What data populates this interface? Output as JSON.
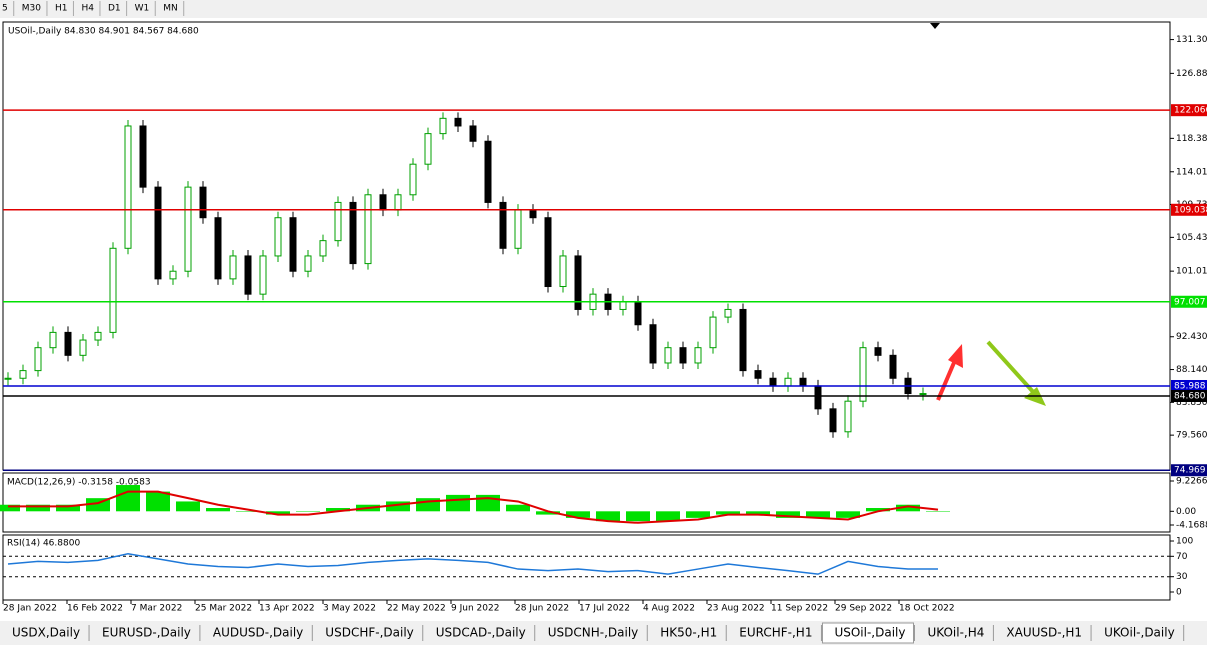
{
  "toolbar": {
    "timeframes": [
      "5",
      "M30",
      "H1",
      "H4",
      "D1",
      "W1",
      "MN"
    ]
  },
  "chart_data": {
    "type": "candlestick",
    "title": "USOil-,Daily  84.830 84.901 84.567 84.680",
    "up_color": "#00a000",
    "down_color": "#000000",
    "closes": [
      87,
      88,
      91,
      93,
      90,
      92,
      93,
      104,
      120,
      112,
      100,
      101,
      112,
      108,
      100,
      103,
      98,
      103,
      108,
      101,
      103,
      105,
      110,
      102,
      111,
      109,
      111,
      115,
      119,
      121,
      120,
      118,
      110,
      104,
      109,
      108,
      99,
      103,
      96,
      98,
      96,
      97,
      94,
      89,
      91,
      89,
      91,
      95,
      96,
      88,
      87,
      86,
      87,
      86,
      83,
      80,
      84,
      91,
      90,
      87,
      85,
      85
    ],
    "ylim": [
      75.0,
      133.6
    ],
    "yticks": [
      {
        "value": 131.3,
        "label": "131.300"
      },
      {
        "value": 126.88,
        "label": "126.880"
      },
      {
        "value": 118.38,
        "label": "118.380"
      },
      {
        "value": 114.01,
        "label": "114.010"
      },
      {
        "value": 109.73,
        "label": "109.730"
      },
      {
        "value": 105.43,
        "label": "105.430"
      },
      {
        "value": 101.01,
        "label": "101.010"
      },
      {
        "value": 92.43,
        "label": "92.430"
      },
      {
        "value": 88.14,
        "label": "88.140"
      },
      {
        "value": 83.85,
        "label": "83.850"
      },
      {
        "value": 79.56,
        "label": "79.560"
      }
    ],
    "levels": [
      {
        "value": 122.066,
        "label": "122.066",
        "color": "#e00000"
      },
      {
        "value": 109.038,
        "label": "109.038",
        "color": "#e00000"
      },
      {
        "value": 97.007,
        "label": "97.007",
        "color": "#00e000"
      },
      {
        "value": 85.988,
        "label": "85.988",
        "color": "#0000d0"
      },
      {
        "value": 84.68,
        "label": "84.680",
        "color": "#000000"
      },
      {
        "value": 74.969,
        "label": "74.969",
        "color": "#000080"
      }
    ],
    "x_labels": [
      "28 Jan 2022",
      "16 Feb 2022",
      "7 Mar 2022",
      "25 Mar 2022",
      "13 Apr 2022",
      "3 May 2022",
      "22 May 2022",
      "9 Jun 2022",
      "28 Jun 2022",
      "17 Jul 2022",
      "4 Aug 2022",
      "23 Aug 2022",
      "11 Sep 2022",
      "29 Sep 2022",
      "18 Oct 2022"
    ]
  },
  "macd": {
    "title": "MACD(12,26,9) -0.3158 -0.0583",
    "hist_color": "#00e000",
    "signal_color": "#e00000",
    "values": [
      2,
      2,
      2,
      4,
      8,
      6,
      3,
      1,
      0,
      -1,
      0,
      1,
      2,
      3,
      4,
      5,
      5,
      2,
      -1,
      -2,
      -3,
      -3,
      -3,
      -2,
      -1,
      -1,
      -2,
      -2,
      -2,
      1,
      2,
      0
    ],
    "signal": [
      1.5,
      1.5,
      1.5,
      2.5,
      6,
      6,
      4,
      2,
      0.5,
      -1,
      -1,
      0,
      1,
      2,
      3,
      3.5,
      4,
      3,
      0,
      -2,
      -3,
      -3.5,
      -3,
      -2.5,
      -1,
      -1,
      -1.5,
      -2,
      -2.5,
      0,
      1.5,
      0.5
    ],
    "ylim": [
      -6.3,
      11.66
    ],
    "yticks": [
      9.2266,
      {
        "value": 0,
        "label": "0.00"
      },
      -4.1688
    ]
  },
  "rsi": {
    "title": "RSI(14) 46.8800",
    "color": "#1e78d8",
    "values": [
      55,
      60,
      58,
      62,
      75,
      65,
      55,
      50,
      48,
      55,
      50,
      52,
      58,
      62,
      65,
      62,
      58,
      45,
      42,
      45,
      40,
      42,
      35,
      45,
      55,
      48,
      42,
      35,
      60,
      50,
      45,
      45
    ],
    "ylim": [
      -15.7,
      111.8
    ],
    "yticks": [
      100,
      70,
      30,
      0
    ],
    "levels": [
      70,
      30
    ]
  },
  "tabs": [
    "USDX,Daily",
    "EURUSD-,Daily",
    "AUDUSD-,Daily",
    "USDCHF-,Daily",
    "USDCAD-,Daily",
    "USDCNH-,Daily",
    "HK50-,H1",
    "EURCHF-,H1",
    "USOil-,Daily",
    "UKOil-,H4",
    "XAUUSD-,H1",
    "UKOil-,Daily"
  ],
  "active_tab": 8
}
